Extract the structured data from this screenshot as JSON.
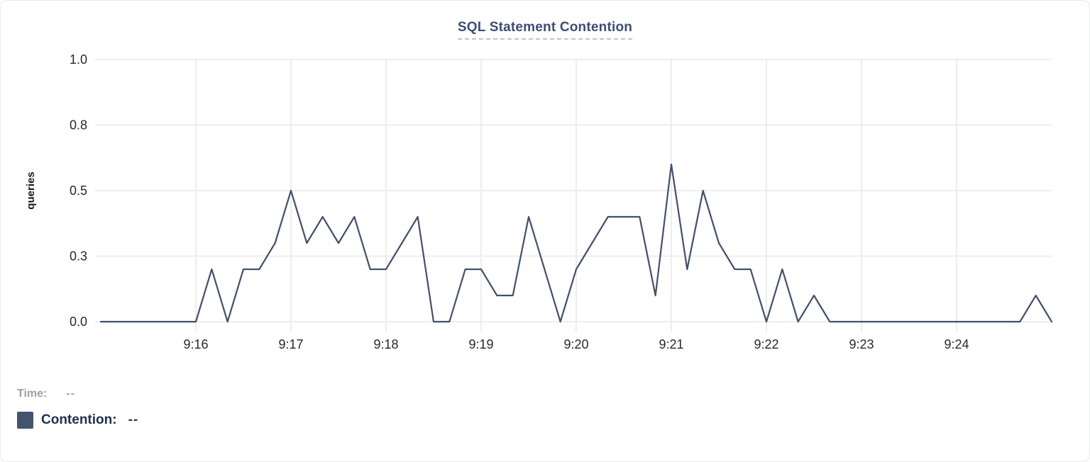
{
  "legend": {
    "time_label": "Time:",
    "time_value": "--",
    "contention_label": "Contention:",
    "contention_value": "--"
  },
  "colors": {
    "line": "#42506b",
    "swatch": "#44536e",
    "title_text": "#3d4e74",
    "title_underline": "#bcc3d9",
    "grid": "#ededed",
    "axis_text": "#26282c",
    "time_label_gray": "#9ba2ac",
    "contention_label_navy": "#1e2f51"
  },
  "chart_data": {
    "type": "line",
    "title": "SQL Statement Contention",
    "xlabel": "",
    "ylabel": "queries",
    "ylim": [
      0,
      1
    ],
    "grid": true,
    "legend_position": "bottom-left",
    "y_ticks": [
      {
        "label": "0.0",
        "value": 0
      },
      {
        "label": "0.3",
        "value": 0.25
      },
      {
        "label": "0.5",
        "value": 0.5
      },
      {
        "label": "0.8",
        "value": 0.75
      },
      {
        "label": "1.0",
        "value": 1.0
      }
    ],
    "x_ticks": [
      "9:16",
      "9:17",
      "9:18",
      "9:19",
      "9:20",
      "9:21",
      "9:22",
      "9:23",
      "9:24"
    ],
    "series": [
      {
        "name": "Contention",
        "unit": "queries",
        "x": [
          "9:15:00",
          "9:15:10",
          "9:15:20",
          "9:15:30",
          "9:15:40",
          "9:15:50",
          "9:16:00",
          "9:16:10",
          "9:16:20",
          "9:16:30",
          "9:16:40",
          "9:16:50",
          "9:17:00",
          "9:17:10",
          "9:17:20",
          "9:17:30",
          "9:17:40",
          "9:17:50",
          "9:18:00",
          "9:18:10",
          "9:18:20",
          "9:18:30",
          "9:18:40",
          "9:18:50",
          "9:19:00",
          "9:19:10",
          "9:19:20",
          "9:19:30",
          "9:19:40",
          "9:19:50",
          "9:20:00",
          "9:20:10",
          "9:20:20",
          "9:20:30",
          "9:20:40",
          "9:20:50",
          "9:21:00",
          "9:21:10",
          "9:21:20",
          "9:21:30",
          "9:21:40",
          "9:21:50",
          "9:22:00",
          "9:22:10",
          "9:22:20",
          "9:22:30",
          "9:22:40",
          "9:22:50",
          "9:23:00",
          "9:23:10",
          "9:23:20",
          "9:23:30",
          "9:23:40",
          "9:23:50",
          "9:24:00",
          "9:24:10",
          "9:24:20",
          "9:24:30",
          "9:24:40",
          "9:24:50",
          "9:25:00"
        ],
        "values": [
          0,
          0,
          0,
          0,
          0,
          0,
          0,
          0.2,
          0,
          0.2,
          0.2,
          0.3,
          0.5,
          0.3,
          0.4,
          0.3,
          0.4,
          0.2,
          0.2,
          0.3,
          0.4,
          0,
          0,
          0.2,
          0.2,
          0.1,
          0.1,
          0.4,
          0.2,
          0,
          0.2,
          0.3,
          0.4,
          0.4,
          0.4,
          0.1,
          0.6,
          0.2,
          0.5,
          0.3,
          0.2,
          0.2,
          0,
          0.2,
          0,
          0.1,
          0,
          0,
          0,
          0,
          0,
          0,
          0,
          0,
          0,
          0,
          0,
          0,
          0,
          0.1,
          0
        ]
      }
    ]
  }
}
